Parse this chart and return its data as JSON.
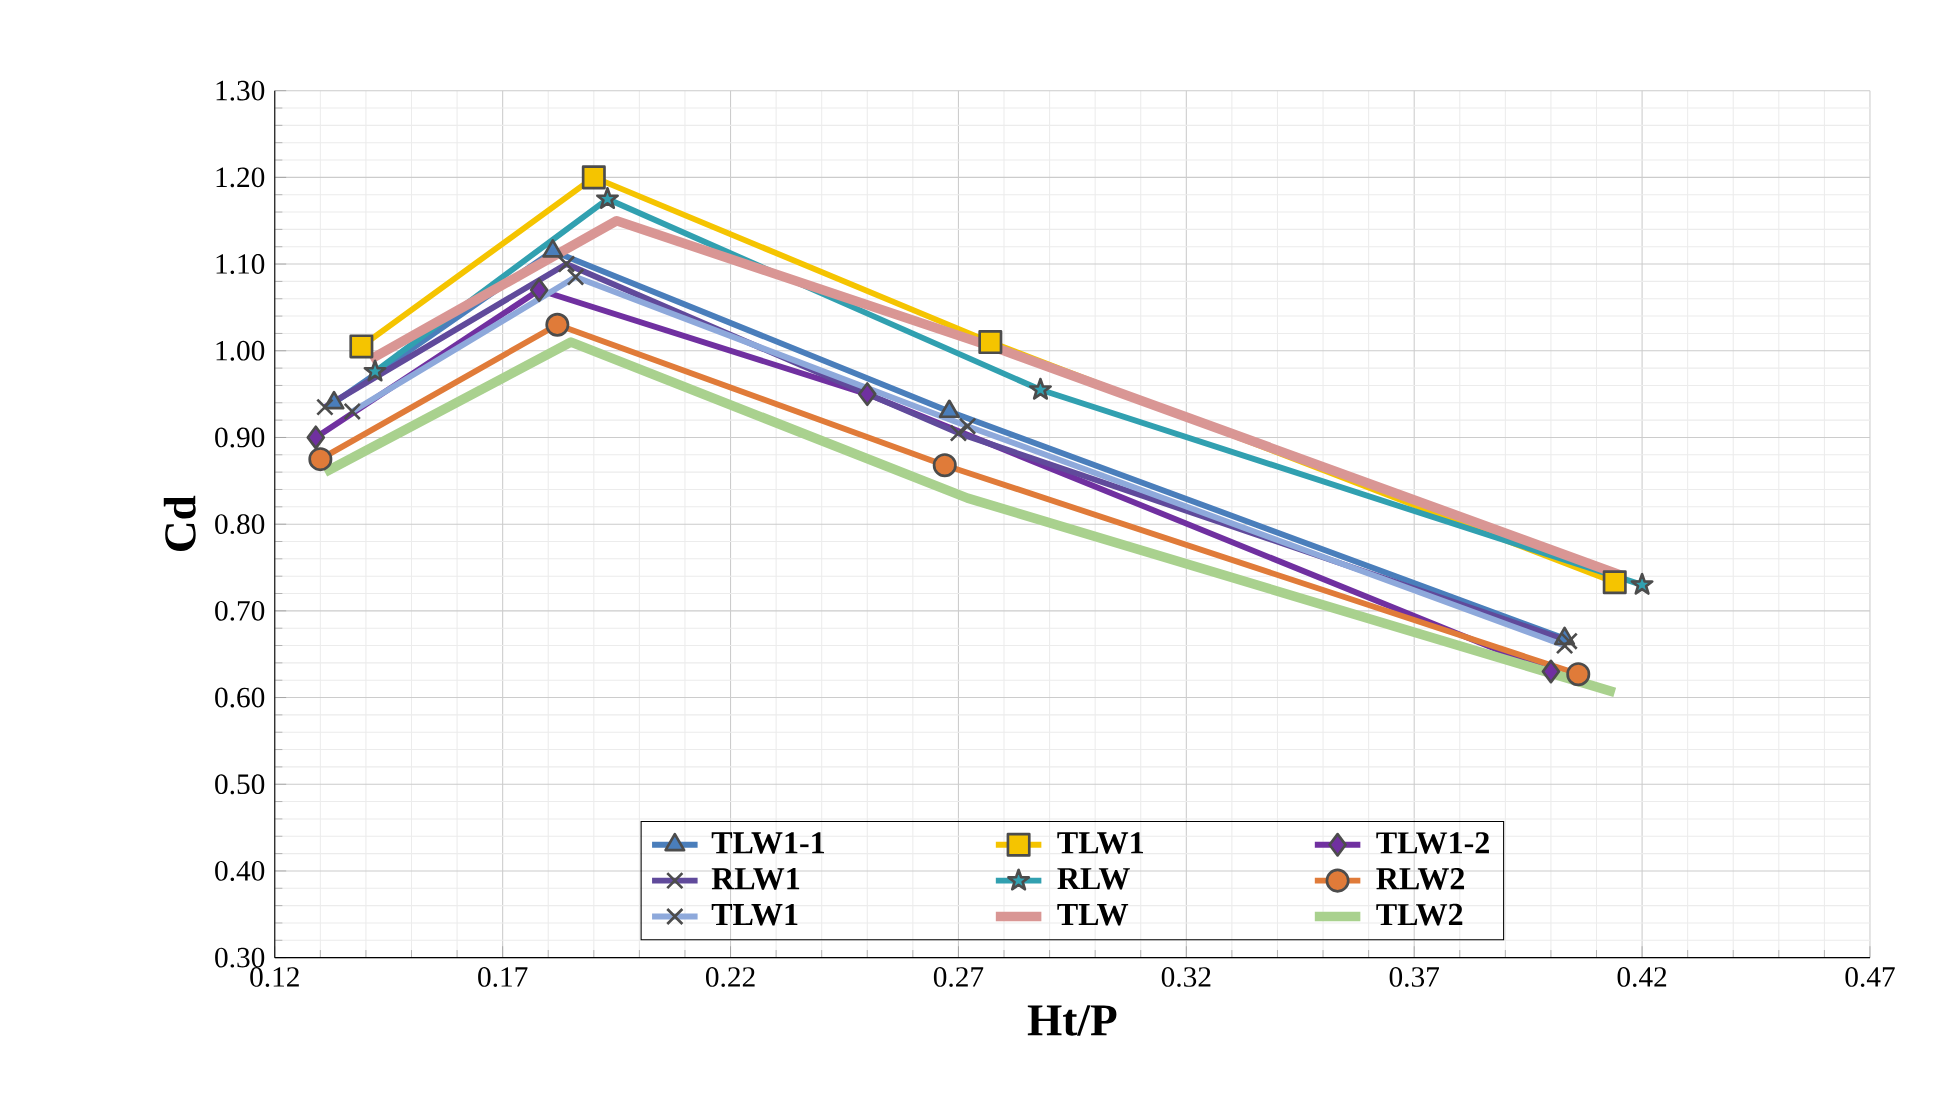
{
  "chart_data": {
    "type": "line",
    "xlabel": "Ht/P",
    "ylabel": "Cd",
    "xlim": [
      0.12,
      0.47
    ],
    "xticks": [
      0.12,
      0.17,
      0.22,
      0.27,
      0.32,
      0.37,
      0.42,
      0.47
    ],
    "ylim": [
      0.3,
      1.3
    ],
    "yticks": [
      {
        "value": 0.3,
        "label": "0.30"
      },
      {
        "value": 0.4,
        "label": "0.40"
      },
      {
        "value": 0.5,
        "label": "0.50"
      },
      {
        "value": 0.6,
        "label": "0.60"
      },
      {
        "value": 0.7,
        "label": "0.70"
      },
      {
        "value": 0.8,
        "label": "0.80"
      },
      {
        "value": 0.9,
        "label": "0.90"
      },
      {
        "value": 1.0,
        "label": "1.00"
      },
      {
        "value": 1.1,
        "label": "1.10"
      },
      {
        "value": 1.2,
        "label": "1.20"
      },
      {
        "value": 1.3,
        "label": "1.30"
      }
    ],
    "grid": true,
    "legend": "bottom",
    "series": [
      {
        "name": "TLW1-1",
        "color": "#4a7ebb",
        "marker": "triangle",
        "x": [
          0.133,
          0.181,
          0.268,
          0.403
        ],
        "values": [
          0.94,
          1.115,
          0.93,
          0.668
        ]
      },
      {
        "name": "TLW1",
        "color": "#f5c400",
        "marker": "square",
        "x": [
          0.139,
          0.19,
          0.277,
          0.414
        ],
        "values": [
          1.005,
          1.2,
          1.01,
          0.733
        ]
      },
      {
        "name": "TLW1-2",
        "color": "#7030a0",
        "marker": "diamond",
        "x": [
          0.129,
          0.178,
          0.25,
          0.4
        ],
        "values": [
          0.9,
          1.07,
          0.95,
          0.63
        ]
      },
      {
        "name": "RLW1",
        "color": "#604a9b",
        "marker": "cross",
        "x": [
          0.131,
          0.184,
          0.27,
          0.404
        ],
        "values": [
          0.935,
          1.1,
          0.905,
          0.665
        ]
      },
      {
        "name": "RLW",
        "color": "#31a0b0",
        "marker": "star",
        "x": [
          0.142,
          0.193,
          0.288,
          0.42
        ],
        "values": [
          0.976,
          1.175,
          0.955,
          0.73
        ]
      },
      {
        "name": "RLW2",
        "color": "#e07b39",
        "marker": "circle",
        "x": [
          0.13,
          0.182,
          0.267,
          0.406
        ],
        "values": [
          0.875,
          1.03,
          0.868,
          0.627
        ]
      },
      {
        "name": "TLW1",
        "color": "#8ea9db",
        "marker": "cross",
        "x": [
          0.137,
          0.186,
          0.272,
          0.403
        ],
        "values": [
          0.93,
          1.085,
          0.913,
          0.66
        ]
      },
      {
        "name": "TLW",
        "color": "#d99694",
        "marker": "none",
        "x": [
          0.141,
          0.195,
          0.28,
          0.416
        ],
        "values": [
          0.99,
          1.15,
          1.0,
          0.74
        ]
      },
      {
        "name": "TLW2",
        "color": "#a9d18e",
        "marker": "none",
        "x": [
          0.131,
          0.185,
          0.272,
          0.414
        ],
        "values": [
          0.86,
          1.01,
          0.83,
          0.606
        ]
      }
    ]
  }
}
